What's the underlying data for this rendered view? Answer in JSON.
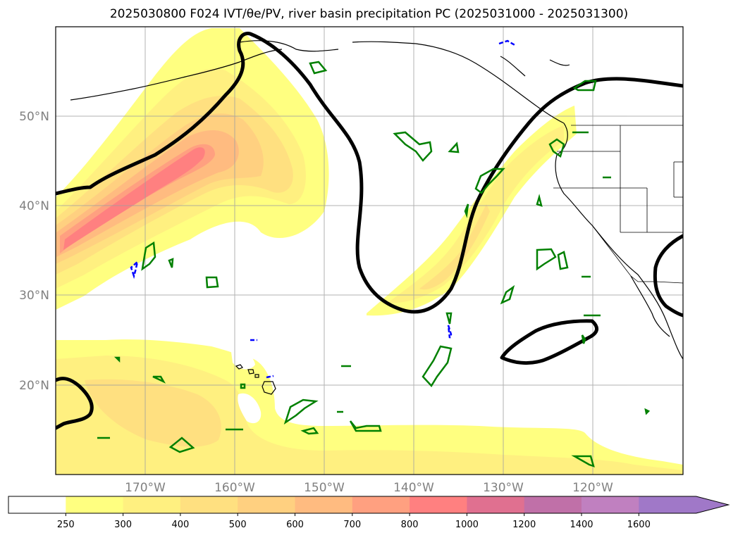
{
  "title": "2025030800 F024 IVT/θe/PV, river basin precipitation PC (2025031000 - 2025031300)",
  "map": {
    "lat_ticks": [
      "20°N",
      "30°N",
      "40°N",
      "50°N"
    ],
    "lon_ticks": [
      "170°W",
      "160°W",
      "150°W",
      "140°W",
      "130°W",
      "120°W"
    ],
    "lat_range": [
      10,
      60
    ],
    "lon_range": [
      -180,
      -110
    ],
    "gridlines": true
  },
  "colorbar": {
    "levels": [
      "250",
      "300",
      "400",
      "500",
      "600",
      "700",
      "800",
      "1000",
      "1200",
      "1400",
      "1600"
    ],
    "colors": [
      "#ffffff",
      "#ffff80",
      "#fff080",
      "#ffe080",
      "#ffd080",
      "#ffbb80",
      "#ffa080",
      "#ff8080",
      "#e07090",
      "#c070a8",
      "#c080c0",
      "#a078c8"
    ],
    "extend": "max"
  },
  "overlays": {
    "pv_contour_color": "#000000",
    "precip_pc_positive_color": "#008000",
    "precip_pc_negative_color": "#0000ff"
  }
}
